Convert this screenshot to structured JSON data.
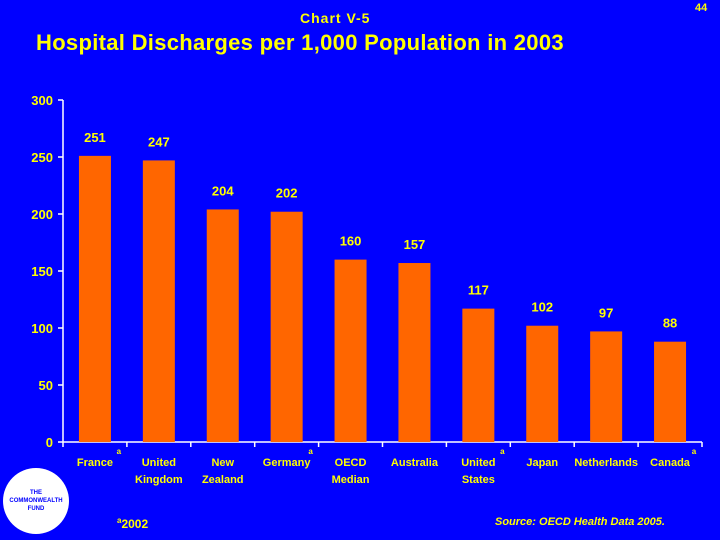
{
  "header": {
    "chart_label": "Chart V-5",
    "page_number": "44",
    "title": "Hospital Discharges per 1,000 Population in 2003"
  },
  "chart_data": {
    "type": "bar",
    "title": "Hospital Discharges per 1,000 Population in 2003",
    "xlabel": "",
    "ylabel": "",
    "ylim": [
      0,
      300
    ],
    "yticks": [
      0,
      50,
      100,
      150,
      200,
      250,
      300
    ],
    "categories": [
      {
        "lines": [
          "France"
        ],
        "note": "a"
      },
      {
        "lines": [
          "United",
          "Kingdom"
        ],
        "note": ""
      },
      {
        "lines": [
          "New",
          "Zealand"
        ],
        "note": ""
      },
      {
        "lines": [
          "Germany"
        ],
        "note": "a"
      },
      {
        "lines": [
          "OECD",
          "Median"
        ],
        "note": ""
      },
      {
        "lines": [
          "Australia"
        ],
        "note": ""
      },
      {
        "lines": [
          "United",
          "States"
        ],
        "note": "a"
      },
      {
        "lines": [
          "Japan"
        ],
        "note": ""
      },
      {
        "lines": [
          "Netherlands"
        ],
        "note": ""
      },
      {
        "lines": [
          "Canada"
        ],
        "note": "a"
      }
    ],
    "values": [
      251,
      247,
      204,
      202,
      160,
      157,
      117,
      102,
      97,
      88
    ],
    "bar_color": "#ff6600",
    "axis_color": "#ffffff"
  },
  "footer": {
    "logo_lines": [
      "THE",
      "COMMONWEALTH",
      "FUND"
    ],
    "footnote_mark": "a",
    "footnote_text": "2002",
    "source": "Source: OECD Health Data 2005."
  }
}
